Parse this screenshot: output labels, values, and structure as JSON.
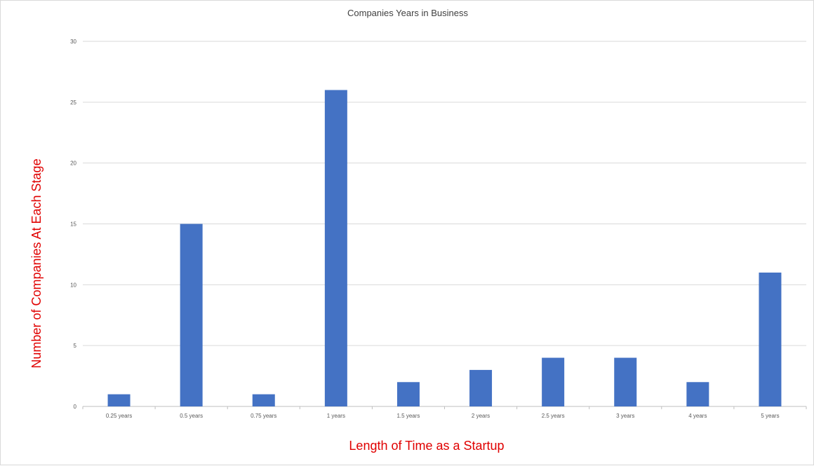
{
  "chart_data": {
    "type": "bar",
    "title": "Companies Years in Business",
    "xlabel": "Length of Time as a Startup",
    "ylabel": "Number of Companies At Each Stage",
    "categories": [
      "0.25 years",
      "0.5 years",
      "0.75 years",
      "1 years",
      "1.5 years",
      "2 years",
      "2.5 years",
      "3 years",
      "4 years",
      "5 years"
    ],
    "values": [
      1,
      15,
      1,
      26,
      2,
      3,
      4,
      4,
      2,
      11
    ],
    "ylim": [
      0,
      30
    ],
    "yticks": [
      "0",
      "5",
      "10",
      "15",
      "20",
      "25",
      "30"
    ],
    "grid": true,
    "legend": "none",
    "bar_color": "#4472c4",
    "axis_title_color": "#e00000"
  }
}
